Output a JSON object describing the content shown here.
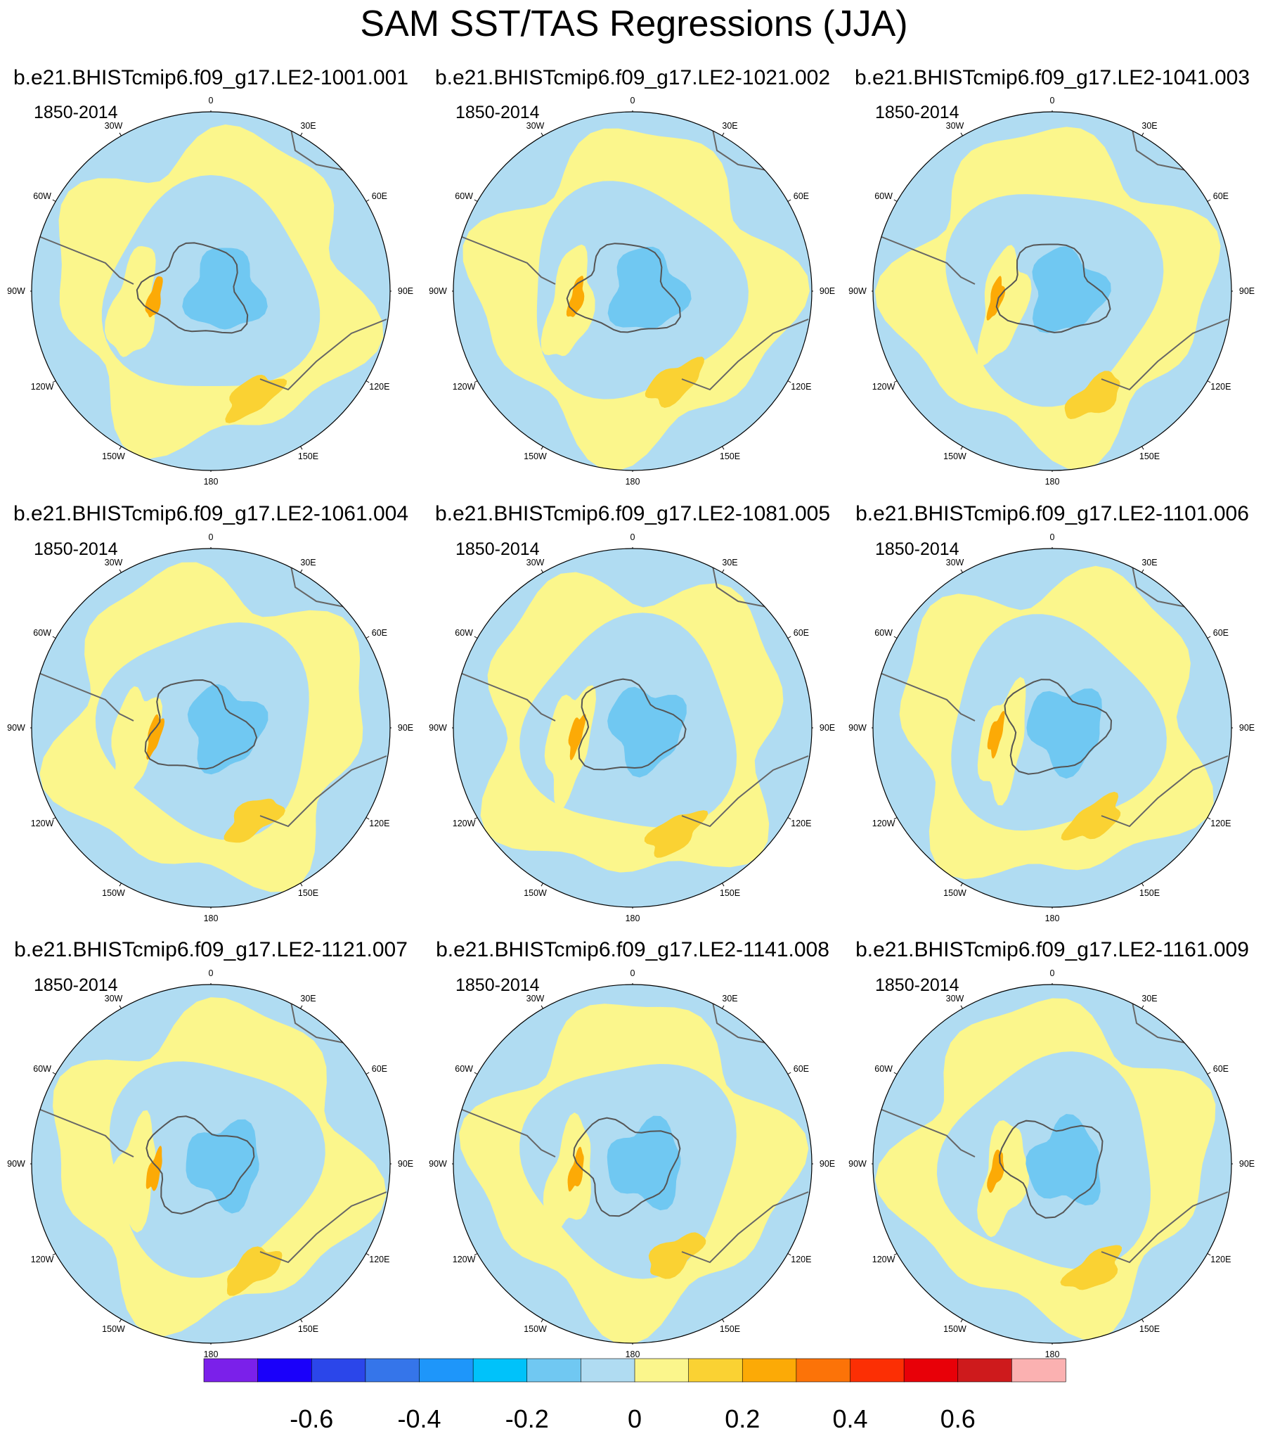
{
  "figure": {
    "title": "SAM SST/TAS Regressions (JJA)",
    "period_label": "1850-2014",
    "longitude_labels": [
      "0",
      "30E",
      "60E",
      "90E",
      "120E",
      "150E",
      "180",
      "150W",
      "120W",
      "90W",
      "60W",
      "30W"
    ]
  },
  "chart_data": {
    "type": "heatmap",
    "projection": "south polar stereographic",
    "variable": "SST/TAS regression on SAM index",
    "season": "JJA",
    "period": "1850-2014",
    "panels": [
      {
        "member": "b.e21.BHISTcmip6.f09_g17.LE2-1001.001"
      },
      {
        "member": "b.e21.BHISTcmip6.f09_g17.LE2-1021.002"
      },
      {
        "member": "b.e21.BHISTcmip6.f09_g17.LE2-1041.003"
      },
      {
        "member": "b.e21.BHISTcmip6.f09_g17.LE2-1061.004"
      },
      {
        "member": "b.e21.BHISTcmip6.f09_g17.LE2-1081.005"
      },
      {
        "member": "b.e21.BHISTcmip6.f09_g17.LE2-1101.006"
      },
      {
        "member": "b.e21.BHISTcmip6.f09_g17.LE2-1121.007"
      },
      {
        "member": "b.e21.BHISTcmip6.f09_g17.LE2-1141.008"
      },
      {
        "member": "b.e21.BHISTcmip6.f09_g17.LE2-1161.009"
      }
    ],
    "colorbar": {
      "levels": [
        -0.7,
        -0.6,
        -0.5,
        -0.4,
        -0.3,
        -0.2,
        -0.1,
        0,
        0.1,
        0.2,
        0.3,
        0.4,
        0.5,
        0.6,
        0.7
      ],
      "tick_labels": [
        "-0.6",
        "-0.4",
        "-0.2",
        "0",
        "0.2",
        "0.4",
        "0.6"
      ],
      "colors": [
        "#7b20ea",
        "#1a00fa",
        "#2b46ea",
        "#3575ea",
        "#1e96fa",
        "#00c2fa",
        "#70c8f2",
        "#b0dcf2",
        "#fbf68c",
        "#fad233",
        "#fcaa06",
        "#fc7308",
        "#fc2f04",
        "#e80008",
        "#ce1a1c",
        "#fbb1b1"
      ]
    }
  }
}
